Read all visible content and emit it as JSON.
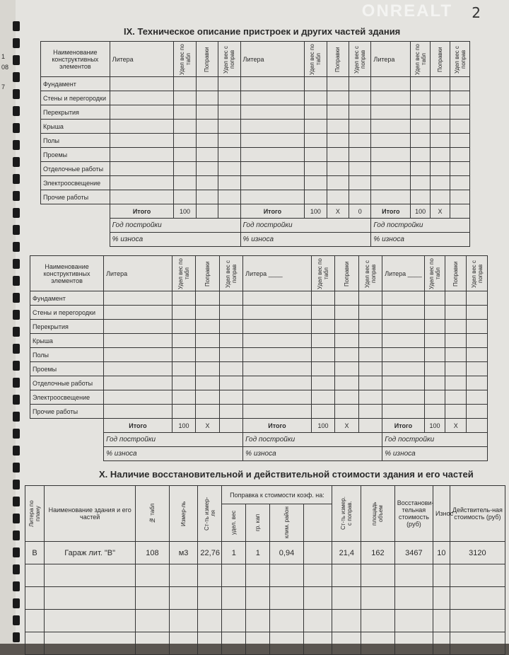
{
  "page_number": "2",
  "watermark": "ONREALT",
  "margin_fragments": [
    "1",
    "08",
    "7"
  ],
  "section9": {
    "title": "IX. Техническое описание пристроек и других частей здания",
    "headers": {
      "name": "Наименование конструктивных элементов",
      "litera": "Литера",
      "litera_blank": "Литера ____",
      "ud_tabl": "Удел вес по табл",
      "popravki": "Поправки",
      "ud_poprav": "Удел вес с поправ"
    },
    "elements": [
      "Фундамент",
      "Стены и перегородки",
      "Перекрытия",
      "Крыша",
      "Полы",
      "Проемы",
      "Отделочные работы",
      "Электроосвещение",
      "Прочие работы"
    ],
    "itogo": "Итого",
    "year_label": "Год постройки",
    "wear_label": "% износа",
    "table1_totals": [
      {
        "sum": "100",
        "popr": "",
        "ud": ""
      },
      {
        "sum": "100",
        "popr": "X",
        "ud": "0"
      },
      {
        "sum": "100",
        "popr": "X",
        "ud": ""
      }
    ],
    "table2_totals": [
      {
        "sum": "100",
        "popr": "X",
        "ud": ""
      },
      {
        "sum": "100",
        "popr": "X",
        "ud": ""
      },
      {
        "sum": "100",
        "popr": "X",
        "ud": ""
      }
    ]
  },
  "section10": {
    "title": "X. Наличие восстановительной и действительной стоимости здания и его частей",
    "headers": {
      "litera": "Литера по плану",
      "name": "Наименование здания и его частей",
      "tabl": "№ табл",
      "izmer": "Измер-ль",
      "st_izmer": "Ст-ть измер-ля",
      "popravka": "Поправка к стоимости коэф. на:",
      "udel": "удел. вес",
      "gr_kap": "гр. кап",
      "klim": "клим. район",
      "st_poprav": "Ст-ть измер. с поправ.",
      "ploshad": "площадь объем",
      "vosst": "Восстанови-тельная стоимость (руб)",
      "iznos": "Износ",
      "deistv": "Действитель-ная стоимость (руб)"
    },
    "rows": [
      [
        "В",
        "Гараж лит. \"В\"",
        "108",
        "м3",
        "22,76",
        "1",
        "1",
        "0,94",
        "",
        "21,4",
        "162",
        "3467",
        "10",
        "3120"
      ]
    ],
    "empty_rows": 4
  }
}
